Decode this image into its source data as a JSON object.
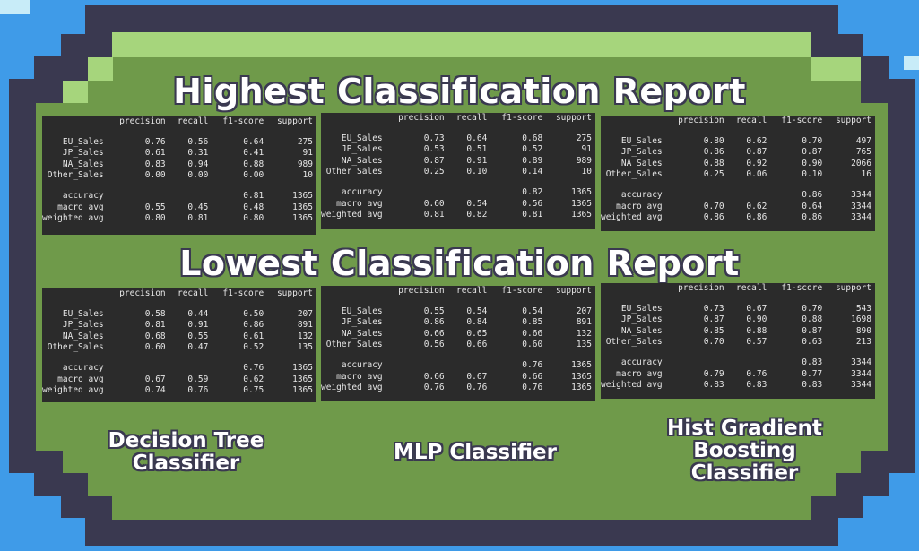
{
  "headings": {
    "highest": "Highest Classification Report",
    "lowest": "Lowest Classification Report"
  },
  "columns": [
    "precision",
    "recall",
    "f1-score",
    "support"
  ],
  "reports": {
    "highest": [
      {
        "rows": [
          [
            "EU_Sales",
            "0.76",
            "0.56",
            "0.64",
            "275"
          ],
          [
            "JP_Sales",
            "0.61",
            "0.31",
            "0.41",
            "91"
          ],
          [
            "NA_Sales",
            "0.83",
            "0.94",
            "0.88",
            "989"
          ],
          [
            "Other_Sales",
            "0.00",
            "0.00",
            "0.00",
            "10"
          ]
        ],
        "summary": [
          [
            "accuracy",
            "",
            "",
            "0.81",
            "1365"
          ],
          [
            "macro avg",
            "0.55",
            "0.45",
            "0.48",
            "1365"
          ],
          [
            "weighted avg",
            "0.80",
            "0.81",
            "0.80",
            "1365"
          ]
        ]
      },
      {
        "rows": [
          [
            "EU_Sales",
            "0.73",
            "0.64",
            "0.68",
            "275"
          ],
          [
            "JP_Sales",
            "0.53",
            "0.51",
            "0.52",
            "91"
          ],
          [
            "NA_Sales",
            "0.87",
            "0.91",
            "0.89",
            "989"
          ],
          [
            "Other_Sales",
            "0.25",
            "0.10",
            "0.14",
            "10"
          ]
        ],
        "summary": [
          [
            "accuracy",
            "",
            "",
            "0.82",
            "1365"
          ],
          [
            "macro avg",
            "0.60",
            "0.54",
            "0.56",
            "1365"
          ],
          [
            "weighted avg",
            "0.81",
            "0.82",
            "0.81",
            "1365"
          ]
        ]
      },
      {
        "rows": [
          [
            "EU_Sales",
            "0.80",
            "0.62",
            "0.70",
            "497"
          ],
          [
            "JP_Sales",
            "0.86",
            "0.87",
            "0.87",
            "765"
          ],
          [
            "NA_Sales",
            "0.88",
            "0.92",
            "0.90",
            "2066"
          ],
          [
            "Other_Sales",
            "0.25",
            "0.06",
            "0.10",
            "16"
          ]
        ],
        "summary": [
          [
            "accuracy",
            "",
            "",
            "0.86",
            "3344"
          ],
          [
            "macro avg",
            "0.70",
            "0.62",
            "0.64",
            "3344"
          ],
          [
            "weighted avg",
            "0.86",
            "0.86",
            "0.86",
            "3344"
          ]
        ]
      }
    ],
    "lowest": [
      {
        "rows": [
          [
            "EU_Sales",
            "0.58",
            "0.44",
            "0.50",
            "207"
          ],
          [
            "JP_Sales",
            "0.81",
            "0.91",
            "0.86",
            "891"
          ],
          [
            "NA_Sales",
            "0.68",
            "0.55",
            "0.61",
            "132"
          ],
          [
            "Other_Sales",
            "0.60",
            "0.47",
            "0.52",
            "135"
          ]
        ],
        "summary": [
          [
            "accuracy",
            "",
            "",
            "0.76",
            "1365"
          ],
          [
            "macro avg",
            "0.67",
            "0.59",
            "0.62",
            "1365"
          ],
          [
            "weighted avg",
            "0.74",
            "0.76",
            "0.75",
            "1365"
          ]
        ]
      },
      {
        "rows": [
          [
            "EU_Sales",
            "0.55",
            "0.54",
            "0.54",
            "207"
          ],
          [
            "JP_Sales",
            "0.86",
            "0.84",
            "0.85",
            "891"
          ],
          [
            "NA_Sales",
            "0.66",
            "0.65",
            "0.66",
            "132"
          ],
          [
            "Other_Sales",
            "0.56",
            "0.66",
            "0.60",
            "135"
          ]
        ],
        "summary": [
          [
            "accuracy",
            "",
            "",
            "0.76",
            "1365"
          ],
          [
            "macro avg",
            "0.66",
            "0.67",
            "0.66",
            "1365"
          ],
          [
            "weighted avg",
            "0.76",
            "0.76",
            "0.76",
            "1365"
          ]
        ]
      },
      {
        "rows": [
          [
            "EU_Sales",
            "0.73",
            "0.67",
            "0.70",
            "543"
          ],
          [
            "JP_Sales",
            "0.87",
            "0.90",
            "0.88",
            "1698"
          ],
          [
            "NA_Sales",
            "0.85",
            "0.88",
            "0.87",
            "890"
          ],
          [
            "Other_Sales",
            "0.70",
            "0.57",
            "0.63",
            "213"
          ]
        ],
        "summary": [
          [
            "accuracy",
            "",
            "",
            "0.83",
            "3344"
          ],
          [
            "macro avg",
            "0.79",
            "0.76",
            "0.77",
            "3344"
          ],
          [
            "weighted avg",
            "0.83",
            "0.83",
            "0.83",
            "3344"
          ]
        ]
      }
    ]
  },
  "captions": {
    "decision_tree": "Decision Tree Classifier",
    "mlp": "MLP Classifier",
    "hist_gradient": "Hist Gradient Boosting Classifier"
  }
}
